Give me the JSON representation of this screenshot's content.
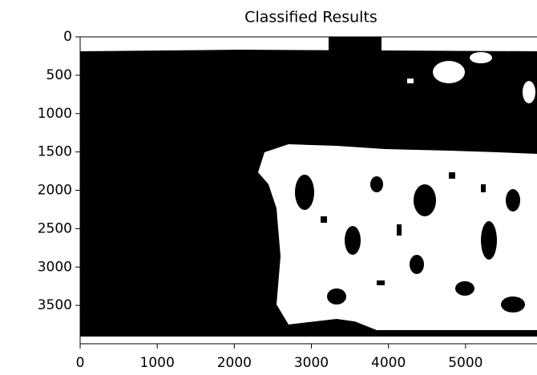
{
  "chart_data": {
    "type": "image",
    "title": "Classified Results",
    "xlim": [
      0,
      6000
    ],
    "xticks": [
      0,
      1000,
      2000,
      3000,
      4000,
      5000
    ],
    "ylim": [
      4000,
      0
    ],
    "yticks": [
      0,
      500,
      1000,
      1500,
      2000,
      2500,
      3000,
      3500
    ]
  }
}
